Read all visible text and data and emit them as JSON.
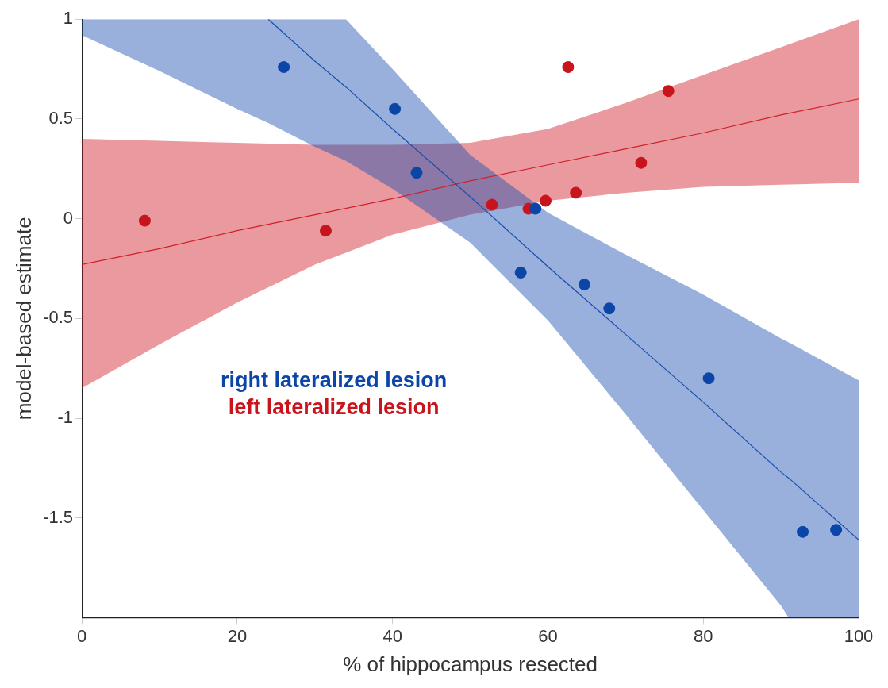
{
  "chart_data": {
    "type": "scatter",
    "xlabel": "% of hippocampus resected",
    "ylabel": "model-based estimate",
    "xlim": [
      0,
      100
    ],
    "xticks": [
      0,
      20,
      40,
      60,
      80,
      100
    ],
    "ylim": [
      -2,
      1
    ],
    "yticks": [
      -1.5,
      -1,
      -0.5,
      0,
      0.5,
      1
    ],
    "grid": false,
    "legend": "bottom left",
    "marker": "circle",
    "series": [
      {
        "type": "line",
        "marker": "none",
        "color": "#1a4fb0",
        "x": [
          0,
          10,
          20,
          24,
          30,
          34,
          40,
          50,
          60,
          70,
          80,
          90,
          91,
          100
        ],
        "values": [
          null,
          null,
          null,
          1,
          0.79,
          0.66,
          0.45,
          0.11,
          -0.24,
          -0.58,
          -0.92,
          -1.27,
          -1.3,
          -1.61
        ],
        "upper": [
          1,
          1,
          1,
          1,
          1,
          1,
          0.75,
          0.32,
          0.03,
          -0.18,
          -0.38,
          -0.6,
          -0.62,
          -0.81
        ],
        "lower": [
          0.92,
          0.74,
          0.55,
          0.48,
          0.36,
          0.29,
          0.15,
          -0.12,
          -0.51,
          -0.98,
          -1.46,
          -1.94,
          -2,
          -2
        ]
      },
      {
        "type": "line",
        "marker": "none",
        "color": "#d0202a",
        "x": [
          0,
          10,
          20,
          30,
          40,
          50,
          60,
          70,
          80,
          90,
          100
        ],
        "values": [
          -0.23,
          -0.15,
          -0.06,
          0.02,
          0.1,
          0.19,
          0.27,
          0.35,
          0.43,
          0.52,
          0.6
        ],
        "upper": [
          0.4,
          0.39,
          0.38,
          0.37,
          0.37,
          0.38,
          0.45,
          0.58,
          0.72,
          0.86,
          1.0
        ],
        "lower": [
          -0.85,
          -0.63,
          -0.42,
          -0.23,
          -0.08,
          0.02,
          0.09,
          0.13,
          0.16,
          0.17,
          0.18
        ]
      },
      {
        "name": "right lateralized lesion",
        "color": "#0b45a8",
        "x": [
          26.0,
          40.3,
          43.1,
          56.5,
          58.4,
          64.7,
          67.9,
          80.7,
          92.8,
          97.1
        ],
        "values": [
          0.76,
          0.55,
          0.23,
          -0.27,
          0.05,
          -0.33,
          -0.45,
          -0.8,
          -1.57,
          -1.56
        ]
      },
      {
        "name": "left lateralized lesion",
        "color": "#c8141c",
        "x": [
          8.1,
          31.4,
          52.8,
          57.5,
          59.7,
          62.6,
          63.6,
          72.0,
          75.5
        ],
        "values": [
          -0.01,
          -0.06,
          0.07,
          0.05,
          0.09,
          0.76,
          0.13,
          0.28,
          0.64
        ]
      }
    ]
  }
}
